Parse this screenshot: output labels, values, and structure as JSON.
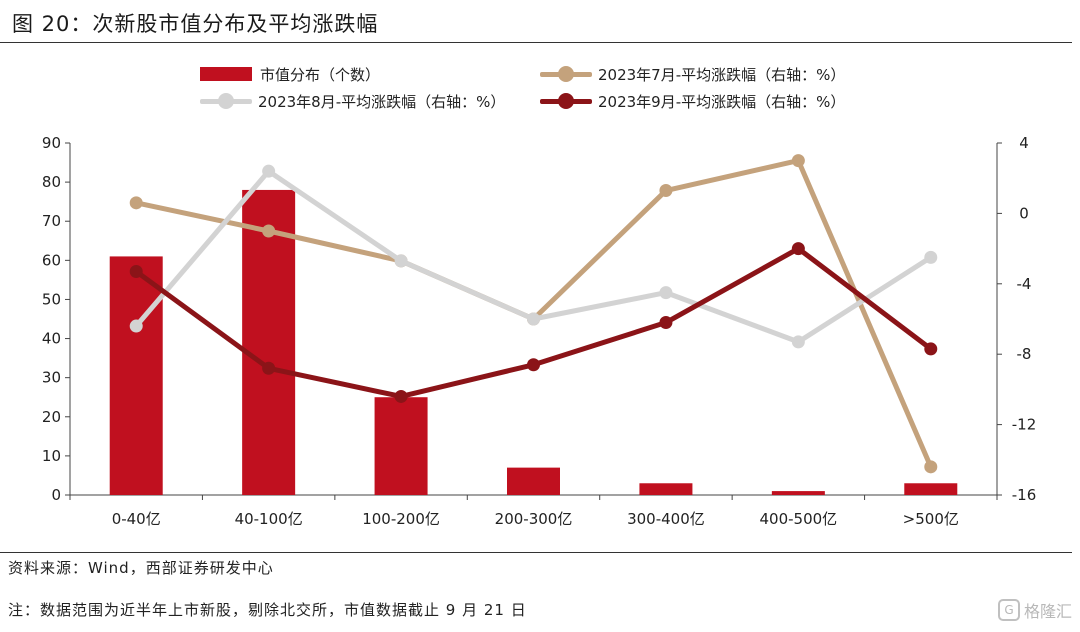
{
  "figure": {
    "title": "图 20：次新股市值分布及平均涨跌幅",
    "source": "资料来源：Wind，西部证券研发中心",
    "note": "注：数据范围为近半年上市新股，剔除北交所，市值数据截止 9 月 21 日",
    "watermark": "格隆汇"
  },
  "chart_data": {
    "type": "bar",
    "categories": [
      "0-40亿",
      "40-100亿",
      "100-200亿",
      "200-300亿",
      "300-400亿",
      "400-500亿",
      ">500亿"
    ],
    "bar_series": {
      "name": "市值分布（个数）",
      "axis": "left",
      "color": "#c0101f",
      "values": [
        61,
        78,
        25,
        7,
        3,
        1,
        3
      ]
    },
    "line_series": [
      {
        "name": "2023年7月-平均涨跌幅（右轴：%）",
        "axis": "right",
        "color": "#c4a27c",
        "values": [
          0.6,
          -1.0,
          -2.7,
          -6.0,
          1.3,
          3.0,
          -14.4
        ]
      },
      {
        "name": "2023年8月-平均涨跌幅（右轴：%）",
        "axis": "right",
        "color": "#d3d3d3",
        "values": [
          -6.4,
          2.4,
          -2.7,
          -6.0,
          -4.5,
          -7.3,
          -2.5
        ]
      },
      {
        "name": "2023年9月-平均涨跌幅（右轴：%）",
        "axis": "right",
        "color": "#8b1418",
        "values": [
          -3.3,
          -8.8,
          -10.4,
          -8.6,
          -6.2,
          -2.0,
          -7.7
        ]
      }
    ],
    "y_left": {
      "min": 0,
      "max": 90,
      "ticks": [
        0,
        10,
        20,
        30,
        40,
        50,
        60,
        70,
        80,
        90
      ]
    },
    "y_right": {
      "min": -16,
      "max": 4,
      "ticks": [
        -16,
        -12,
        -8,
        -4,
        0,
        4
      ]
    },
    "grid": false,
    "legend_position": "top"
  }
}
